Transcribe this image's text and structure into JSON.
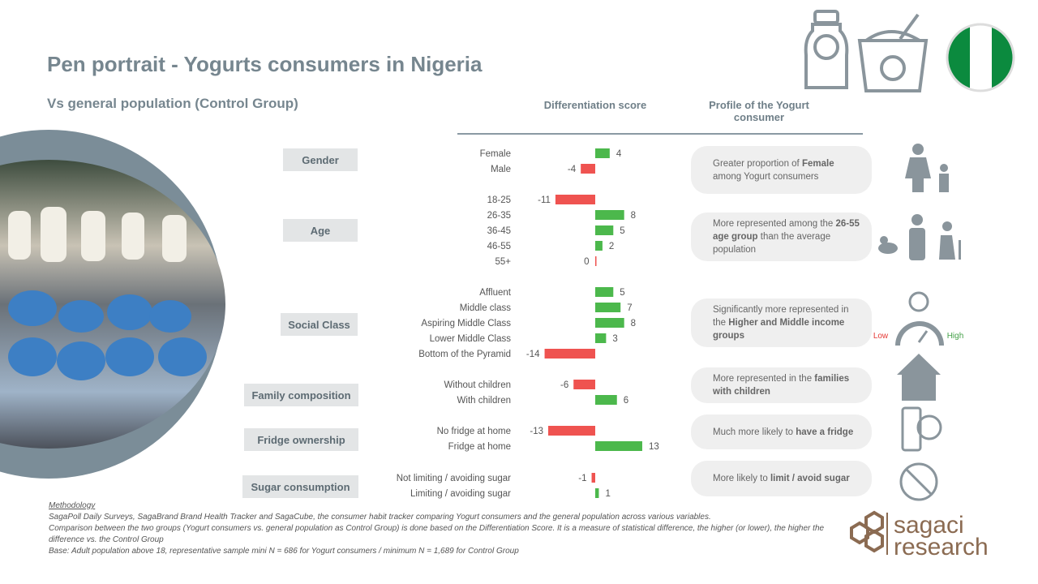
{
  "header": {
    "title": "Pen portrait - Yogurts consumers in Nigeria",
    "subtitle": "Vs general population (Control Group)",
    "score_header": "Differentiation score",
    "profile_header": "Profile of the Yogurt consumer"
  },
  "chart_data": {
    "type": "bar",
    "orientation": "horizontal",
    "categories": [
      "Female",
      "Male",
      "18-25",
      "26-35",
      "36-45",
      "46-55",
      "55+",
      "Affluent",
      "Middle class",
      "Aspiring Middle Class",
      "Lower Middle Class",
      "Bottom of the Pyramid",
      "Without children",
      "With children",
      "No fridge at home",
      "Fridge at home",
      "Not limiting / avoiding sugar",
      "Limiting / avoiding sugar"
    ],
    "values": [
      4,
      -4,
      -11,
      8,
      5,
      2,
      0,
      5,
      7,
      8,
      3,
      -14,
      -6,
      6,
      -13,
      13,
      -1,
      1
    ],
    "colors": {
      "positive": "#4cb84c",
      "negative": "#ef5350"
    }
  },
  "groups": [
    {
      "label": "Gender",
      "profile": [
        "Greater proportion of ",
        "Female",
        " among Yogurt consumers"
      ]
    },
    {
      "label": "Age",
      "profile": [
        "More represented among the ",
        "26-55 age group",
        " than the average population"
      ]
    },
    {
      "label": "Social Class",
      "profile": [
        "Significantly more represented in the ",
        "Higher and Middle income groups"
      ]
    },
    {
      "label": "Family composition",
      "profile": [
        "More represented in the ",
        "families with children"
      ]
    },
    {
      "label": "Fridge ownership",
      "profile": [
        "Much more likely to ",
        "have a fridge"
      ]
    },
    {
      "label": "Sugar consumption",
      "profile": [
        "More likely to ",
        "limit / avoid sugar"
      ]
    }
  ],
  "income_legend": {
    "low": "Low",
    "high": "High"
  },
  "methodology": {
    "title": "Methodology",
    "lines": [
      "SagaPoll Daily Surveys, SagaBrand Brand Health Tracker and SagaCube, the consumer habit tracker comparing Yogurt consumers and the general population across various variables.",
      "Comparison between the two groups (Yogurt consumers vs. general population as Control Group) is done based on the Differentiation Score. It is a measure of statistical difference, the higher (or lower), the higher the difference vs. the Control Group",
      "Base: Adult population above 18, representative sample mini N = 686 for Yogurt consumers / minimum N = 1,689 for Control Group"
    ]
  },
  "logo": {
    "line1": "sagaci",
    "line2": "research"
  }
}
